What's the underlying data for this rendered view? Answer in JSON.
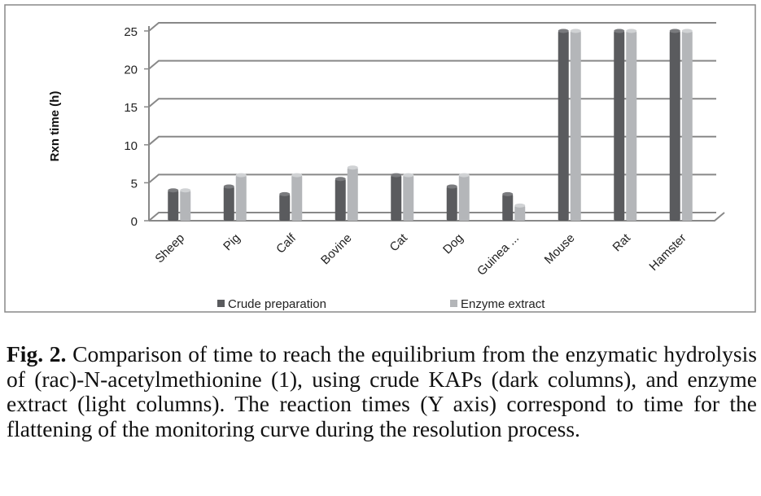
{
  "chart_data": {
    "type": "bar",
    "title": "",
    "xlabel": "",
    "ylabel": "Rxn time (h)",
    "ylim": [
      0,
      25
    ],
    "yticks": [
      "0",
      "5",
      "10",
      "15",
      "20",
      "25"
    ],
    "grid": true,
    "legend_position": "bottom",
    "categories": [
      "Sheep",
      "Pig",
      "Calf",
      "Bovine",
      "Cat",
      "Dog",
      "Guinea ...",
      "Mouse",
      "Rat",
      "Hamster"
    ],
    "series": [
      {
        "name": "Crude preparation",
        "color": "#5a5b5e",
        "values": [
          4,
          4.5,
          3.5,
          5.5,
          6,
          4.5,
          3.5,
          25,
          25,
          25
        ]
      },
      {
        "name": "Enzyme extract",
        "color": "#b4b6b9",
        "values": [
          4,
          6,
          6,
          7,
          6,
          6,
          2,
          25,
          25,
          25
        ]
      }
    ]
  },
  "caption": {
    "label": "Fig. 2.",
    "text": " Comparison of time to reach the equilibrium from the enzymatic hydrolysis of (rac)-N-acetylmethionine (1), using crude KAPs (dark columns), and enzyme extract (light columns). The reaction times (Y axis) correspond to time for the flattening of the monitoring curve during the resolution process."
  }
}
